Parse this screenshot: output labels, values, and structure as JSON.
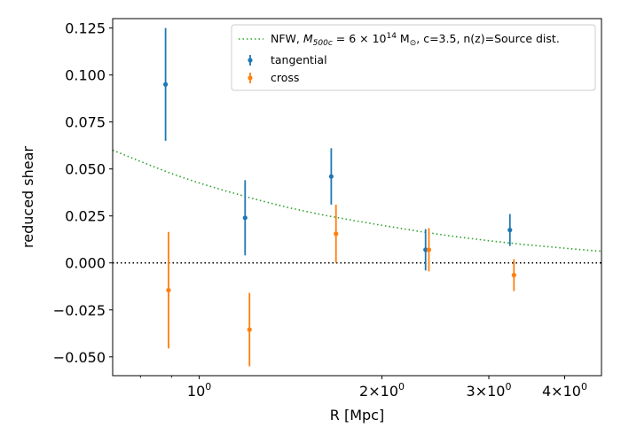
{
  "chart_data": {
    "type": "scatter",
    "xscale": "log",
    "xlim": [
      0.72,
      4.6
    ],
    "ylim": [
      -0.06,
      0.13
    ],
    "xlabel": "R [Mpc]",
    "ylabel": "reduced shear",
    "yticks": [
      {
        "value": 0.125,
        "label": "0.125"
      },
      {
        "value": 0.1,
        "label": "0.100"
      },
      {
        "value": 0.075,
        "label": "0.075"
      },
      {
        "value": 0.05,
        "label": "0.050"
      },
      {
        "value": 0.025,
        "label": "0.025"
      },
      {
        "value": 0.0,
        "label": "0.000"
      },
      {
        "value": -0.025,
        "label": "−0.025"
      },
      {
        "value": -0.05,
        "label": "−0.050"
      }
    ],
    "xticks_major": [
      {
        "value": 1,
        "base": "10",
        "exp": "0"
      },
      {
        "value": 2,
        "base": "2×10",
        "exp": "0"
      },
      {
        "value": 3,
        "base": "3×10",
        "exp": "0"
      },
      {
        "value": 4,
        "base": "4×10",
        "exp": "0"
      }
    ],
    "xticks_minor": [
      0.8,
      0.9
    ],
    "zero_line": {
      "y": 0.0,
      "color": "#000000",
      "style": "dotted"
    },
    "model": {
      "name": "NFW, M_500c = 6×10^14 M_sun, c=3.5, n(z)=Source dist.",
      "color": "#2ca02c",
      "style": "dotted",
      "x": [
        0.72,
        0.8,
        0.9,
        1.0,
        1.1,
        1.25,
        1.4,
        1.6,
        1.8,
        2.0,
        2.3,
        2.6,
        3.0,
        3.4,
        3.8,
        4.2,
        4.6
      ],
      "y": [
        0.06,
        0.054,
        0.0475,
        0.0425,
        0.0385,
        0.0335,
        0.0295,
        0.0255,
        0.0225,
        0.02,
        0.0168,
        0.0143,
        0.0118,
        0.0099,
        0.0085,
        0.0072,
        0.0062
      ]
    },
    "series": [
      {
        "name": "tangential",
        "color": "#1f77b4",
        "points": [
          {
            "x": 0.88,
            "y": 0.095,
            "err": 0.03
          },
          {
            "x": 1.19,
            "y": 0.024,
            "err": 0.02
          },
          {
            "x": 1.65,
            "y": 0.046,
            "err": 0.015
          },
          {
            "x": 2.36,
            "y": 0.007,
            "err": 0.011
          },
          {
            "x": 3.25,
            "y": 0.0175,
            "err": 0.0085
          }
        ]
      },
      {
        "name": "cross",
        "color": "#ff7f0e",
        "points": [
          {
            "x": 0.89,
            "y": -0.0145,
            "err": 0.031
          },
          {
            "x": 1.21,
            "y": -0.0355,
            "err": 0.0195
          },
          {
            "x": 1.68,
            "y": 0.0155,
            "err": 0.0155
          },
          {
            "x": 2.39,
            "y": 0.007,
            "err": 0.0115
          },
          {
            "x": 3.3,
            "y": -0.0065,
            "err": 0.0085
          }
        ]
      }
    ],
    "legend": {
      "position": "top-right",
      "entries": [
        {
          "label_prefix": "NFW, ",
          "math_m": "M",
          "math_sub": "500c",
          "eq": " = 6 × 10",
          "exp": "14",
          "unit_m": " M",
          "unit_sub": "⊙",
          "suffix": ", c=3.5, n(z)=Source dist."
        },
        {
          "label": "tangential"
        },
        {
          "label": "cross"
        }
      ]
    }
  }
}
